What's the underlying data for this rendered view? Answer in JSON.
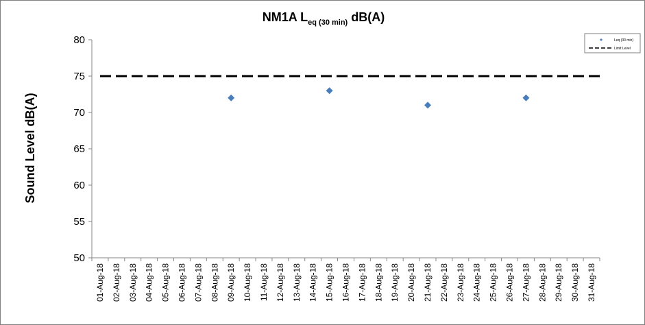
{
  "chart_data": {
    "type": "scatter",
    "title": {
      "main": "NM1A L",
      "subscript": "eq (30 min)",
      "suffix": " dB(A)"
    },
    "ylabel": "Sound Level dB(A)",
    "xlabel": "",
    "ylim": [
      50,
      80
    ],
    "yticks": [
      50,
      55,
      60,
      65,
      70,
      75,
      80
    ],
    "grid": false,
    "legend_position": "top-right",
    "categories": [
      "01-Aug-18",
      "02-Aug-18",
      "03-Aug-18",
      "04-Aug-18",
      "05-Aug-18",
      "06-Aug-18",
      "07-Aug-18",
      "08-Aug-18",
      "09-Aug-18",
      "10-Aug-18",
      "11-Aug-18",
      "12-Aug-18",
      "13-Aug-18",
      "14-Aug-18",
      "15-Aug-18",
      "16-Aug-18",
      "17-Aug-18",
      "18-Aug-18",
      "19-Aug-18",
      "20-Aug-18",
      "21-Aug-18",
      "22-Aug-18",
      "23-Aug-18",
      "24-Aug-18",
      "25-Aug-18",
      "26-Aug-18",
      "27-Aug-18",
      "28-Aug-18",
      "29-Aug-18",
      "30-Aug-18",
      "31-Aug-18"
    ],
    "series": [
      {
        "name": "Leq (30 min)",
        "kind": "scatter",
        "marker": "diamond",
        "color": "#4a7ebb",
        "points": [
          {
            "x": "09-Aug-18",
            "y": 72
          },
          {
            "x": "15-Aug-18",
            "y": 73
          },
          {
            "x": "21-Aug-18",
            "y": 71
          },
          {
            "x": "27-Aug-18",
            "y": 72
          }
        ]
      },
      {
        "name": "Limit Level",
        "kind": "line",
        "style": "dashed",
        "color": "#000000",
        "value": 75
      }
    ]
  }
}
